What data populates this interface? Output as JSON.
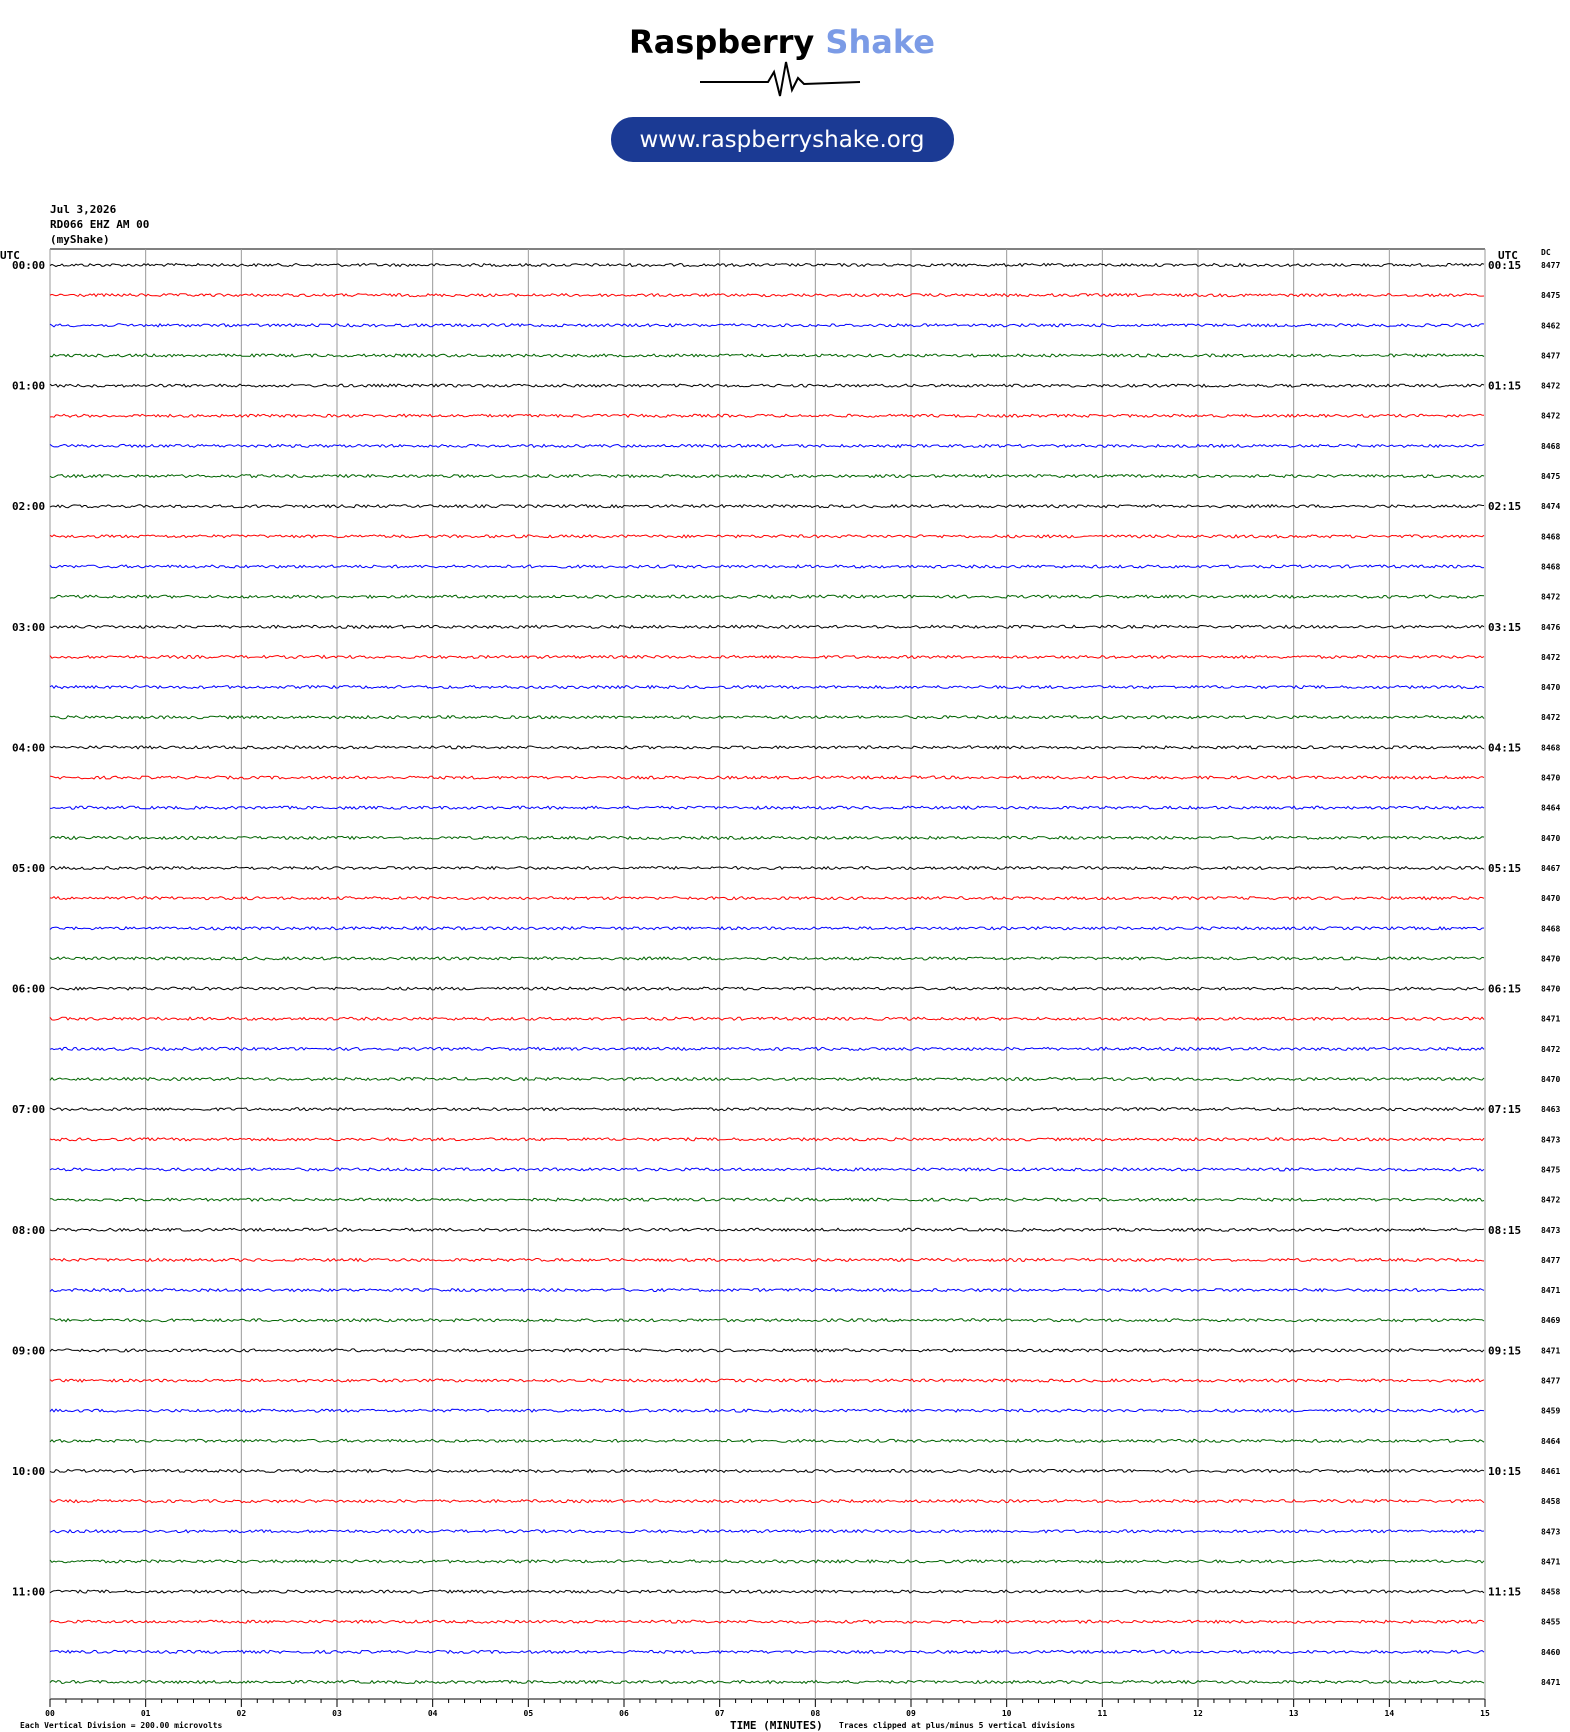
{
  "header": {
    "brand_first": "Raspberry",
    "brand_second": "Shake",
    "url": "www.raspberryshake.org"
  },
  "plot": {
    "date": "Jul 3,2026",
    "station": "RD066 EHZ AM 00",
    "owner": "(myShake)",
    "utc_left": "UTC",
    "utc_right": "UTC",
    "dc_label": "DC",
    "hour_labels_left": [
      "00:00",
      "01:00",
      "02:00",
      "03:00",
      "04:00",
      "05:00",
      "06:00",
      "07:00",
      "08:00",
      "09:00",
      "10:00",
      "11:00"
    ],
    "hour_labels_right": [
      "00:15",
      "01:15",
      "02:15",
      "03:15",
      "04:15",
      "05:15",
      "06:15",
      "07:15",
      "08:15",
      "09:15",
      "10:15",
      "11:15"
    ],
    "dc_values": [
      8477,
      8475,
      8462,
      8477,
      8472,
      8472,
      8468,
      8475,
      8474,
      8468,
      8468,
      8472,
      8476,
      8472,
      8470,
      8472,
      8468,
      8470,
      8464,
      8470,
      8467,
      8470,
      8468,
      8470,
      8470,
      8471,
      8472,
      8470,
      8463,
      8473,
      8475,
      8472,
      8473,
      8477,
      8471,
      8469,
      8471,
      8477,
      8459,
      8464,
      8461,
      8458,
      8473,
      8471,
      8458,
      8455,
      8460,
      8471
    ],
    "trace_colors": [
      "#000000",
      "#ff0000",
      "#0000ff",
      "#006400"
    ],
    "x_ticks": [
      "00",
      "01",
      "02",
      "03",
      "04",
      "05",
      "06",
      "07",
      "08",
      "09",
      "10",
      "11",
      "12",
      "13",
      "14",
      "15"
    ],
    "x_axis_label": "TIME (MINUTES)",
    "footer_left": "Each Vertical Division =  200.00 microvolts",
    "footer_right": "Traces clipped at plus/minus 5 vertical divisions"
  }
}
